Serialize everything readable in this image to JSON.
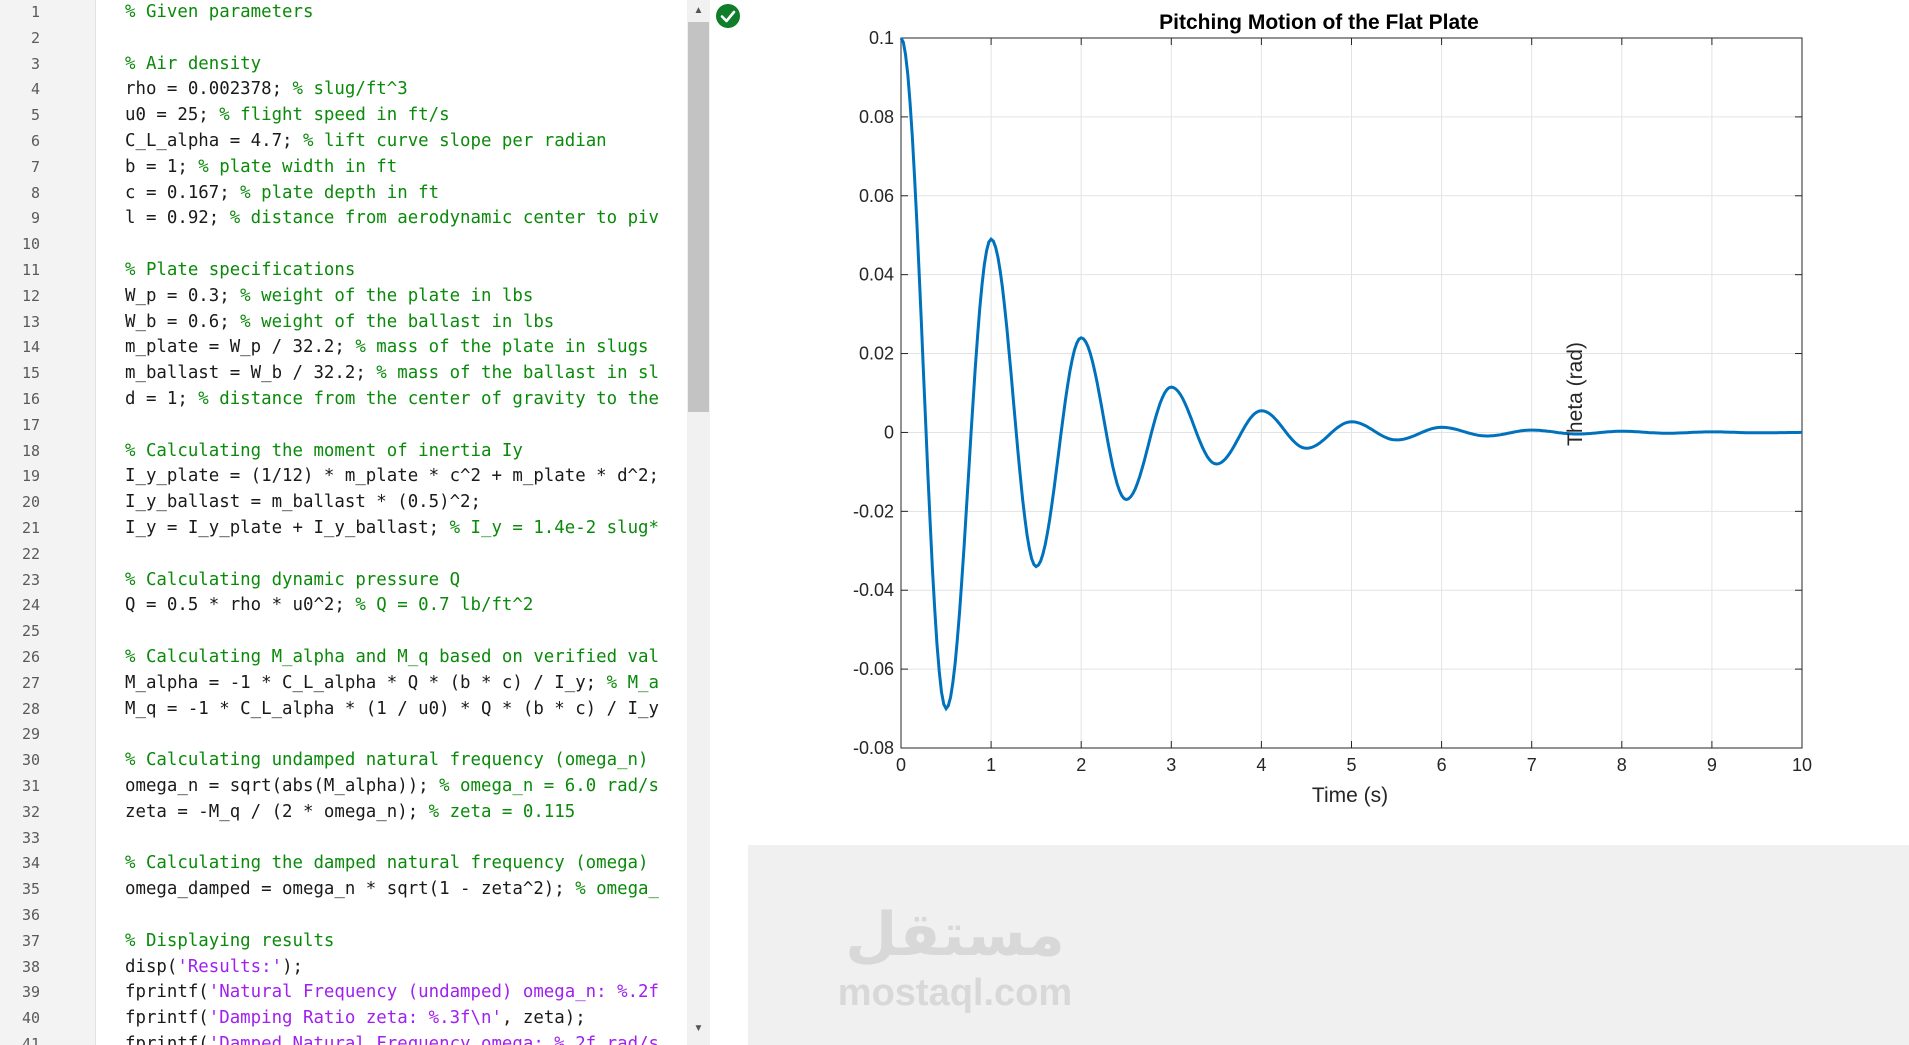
{
  "editor": {
    "lines": [
      {
        "n": "1",
        "segs": [
          {
            "t": "% Given parameters",
            "c": "cm"
          }
        ]
      },
      {
        "n": "2",
        "segs": []
      },
      {
        "n": "3",
        "segs": [
          {
            "t": "% Air density",
            "c": "cm"
          }
        ]
      },
      {
        "n": "4",
        "segs": [
          {
            "t": "rho = 0.002378; ",
            "c": ""
          },
          {
            "t": "% slug/ft^3",
            "c": "cm"
          }
        ]
      },
      {
        "n": "5",
        "segs": [
          {
            "t": "u0 = 25; ",
            "c": ""
          },
          {
            "t": "% flight speed in ft/s",
            "c": "cm"
          }
        ]
      },
      {
        "n": "6",
        "segs": [
          {
            "t": "C_L_alpha = 4.7; ",
            "c": ""
          },
          {
            "t": "% lift curve slope per radian",
            "c": "cm"
          }
        ]
      },
      {
        "n": "7",
        "segs": [
          {
            "t": "b = 1; ",
            "c": ""
          },
          {
            "t": "% plate width in ft",
            "c": "cm"
          }
        ]
      },
      {
        "n": "8",
        "segs": [
          {
            "t": "c = 0.167; ",
            "c": ""
          },
          {
            "t": "% plate depth in ft",
            "c": "cm"
          }
        ]
      },
      {
        "n": "9",
        "segs": [
          {
            "t": "l = 0.92; ",
            "c": ""
          },
          {
            "t": "% distance from aerodynamic center to piv",
            "c": "cm"
          }
        ]
      },
      {
        "n": "10",
        "segs": []
      },
      {
        "n": "11",
        "segs": [
          {
            "t": "% Plate specifications",
            "c": "cm"
          }
        ]
      },
      {
        "n": "12",
        "segs": [
          {
            "t": "W_p = 0.3; ",
            "c": ""
          },
          {
            "t": "% weight of the plate in lbs",
            "c": "cm"
          }
        ]
      },
      {
        "n": "13",
        "segs": [
          {
            "t": "W_b = 0.6; ",
            "c": ""
          },
          {
            "t": "% weight of the ballast in lbs",
            "c": "cm"
          }
        ]
      },
      {
        "n": "14",
        "segs": [
          {
            "t": "m_plate = W_p / 32.2; ",
            "c": ""
          },
          {
            "t": "% mass of the plate in slugs",
            "c": "cm"
          }
        ]
      },
      {
        "n": "15",
        "segs": [
          {
            "t": "m_ballast = W_b / 32.2; ",
            "c": ""
          },
          {
            "t": "% mass of the ballast in sl",
            "c": "cm"
          }
        ]
      },
      {
        "n": "16",
        "segs": [
          {
            "t": "d = 1; ",
            "c": ""
          },
          {
            "t": "% distance from the center of gravity to the",
            "c": "cm"
          }
        ]
      },
      {
        "n": "17",
        "segs": []
      },
      {
        "n": "18",
        "segs": [
          {
            "t": "% Calculating the moment of inertia Iy",
            "c": "cm"
          }
        ]
      },
      {
        "n": "19",
        "segs": [
          {
            "t": "I_y_plate = (1/12) * m_plate * c^2 + m_plate * d^2;",
            "c": ""
          }
        ]
      },
      {
        "n": "20",
        "segs": [
          {
            "t": "I_y_ballast = m_ballast * (0.5)^2;",
            "c": ""
          }
        ]
      },
      {
        "n": "21",
        "segs": [
          {
            "t": "I_y = I_y_plate + I_y_ballast; ",
            "c": ""
          },
          {
            "t": "% I_y = 1.4e-2 slug*",
            "c": "cm"
          }
        ]
      },
      {
        "n": "22",
        "segs": []
      },
      {
        "n": "23",
        "segs": [
          {
            "t": "% Calculating dynamic pressure Q",
            "c": "cm"
          }
        ]
      },
      {
        "n": "24",
        "segs": [
          {
            "t": "Q = 0.5 * rho * u0^2; ",
            "c": ""
          },
          {
            "t": "% Q = 0.7 lb/ft^2",
            "c": "cm"
          }
        ]
      },
      {
        "n": "25",
        "segs": []
      },
      {
        "n": "26",
        "segs": [
          {
            "t": "% Calculating M_alpha and M_q based on verified val",
            "c": "cm"
          }
        ]
      },
      {
        "n": "27",
        "segs": [
          {
            "t": "M_alpha = -1 * C_L_alpha * Q * (b * c) / I_y; ",
            "c": ""
          },
          {
            "t": "% M_a",
            "c": "cm"
          }
        ]
      },
      {
        "n": "28",
        "segs": [
          {
            "t": "M_q = -1 * C_L_alpha * (1 / u0) * Q * (b * c) / I_y",
            "c": ""
          }
        ]
      },
      {
        "n": "29",
        "segs": []
      },
      {
        "n": "30",
        "segs": [
          {
            "t": "% Calculating undamped natural frequency (omega_n)",
            "c": "cm"
          }
        ]
      },
      {
        "n": "31",
        "segs": [
          {
            "t": "omega_n = sqrt(abs(M_alpha)); ",
            "c": ""
          },
          {
            "t": "% omega_n = 6.0 rad/s",
            "c": "cm"
          }
        ]
      },
      {
        "n": "32",
        "segs": [
          {
            "t": "zeta = -M_q / (2 * omega_n); ",
            "c": ""
          },
          {
            "t": "% zeta = 0.115",
            "c": "cm"
          }
        ]
      },
      {
        "n": "33",
        "segs": []
      },
      {
        "n": "34",
        "segs": [
          {
            "t": "% Calculating the damped natural frequency (omega)",
            "c": "cm"
          }
        ]
      },
      {
        "n": "35",
        "segs": [
          {
            "t": "omega_damped = omega_n * sqrt(1 - zeta^2); ",
            "c": ""
          },
          {
            "t": "% omega_",
            "c": "cm"
          }
        ]
      },
      {
        "n": "36",
        "segs": []
      },
      {
        "n": "37",
        "segs": [
          {
            "t": "% Displaying results",
            "c": "cm"
          }
        ]
      },
      {
        "n": "38",
        "segs": [
          {
            "t": "disp(",
            "c": ""
          },
          {
            "t": "'Results:'",
            "c": "st"
          },
          {
            "t": ");",
            "c": ""
          }
        ]
      },
      {
        "n": "39",
        "segs": [
          {
            "t": "fprintf(",
            "c": ""
          },
          {
            "t": "'Natural Frequency (undamped) omega_n: %.2f",
            "c": "st"
          }
        ]
      },
      {
        "n": "40",
        "segs": [
          {
            "t": "fprintf(",
            "c": ""
          },
          {
            "t": "'Damping Ratio zeta: %.3f\\n'",
            "c": "st"
          },
          {
            "t": ", zeta);",
            "c": ""
          }
        ]
      },
      {
        "n": "41",
        "segs": [
          {
            "t": "fprintf(",
            "c": ""
          },
          {
            "t": "'Damped Natural Frequency omega: %.2f rad/s",
            "c": "st"
          }
        ]
      }
    ],
    "status_icon": "check-circle-icon",
    "scroll_up_icon": "triangle-up-icon",
    "scroll_down_icon": "triangle-down-icon"
  },
  "colors": {
    "comment": "#0a8a0a",
    "string": "#a020f0",
    "line_color": "#0072bd",
    "grid": "#e3e3e3"
  },
  "chart_data": {
    "type": "line",
    "title": "Pitching Motion of the Flat Plate",
    "xlabel": "Time (s)",
    "ylabel": "Theta (rad)",
    "xlim": [
      0,
      10
    ],
    "ylim": [
      -0.08,
      0.1
    ],
    "xticks": [
      0,
      1,
      2,
      3,
      4,
      5,
      6,
      7,
      8,
      9,
      10
    ],
    "yticks": [
      -0.08,
      -0.06,
      -0.04,
      -0.02,
      0,
      0.02,
      0.04,
      0.06,
      0.08,
      0.1
    ],
    "ytick_labels": [
      "-0.08",
      "-0.06",
      "-0.04",
      "-0.02",
      "0",
      "0.02",
      "0.04",
      "0.06",
      "0.08",
      "0.1"
    ],
    "grid": true,
    "series": [
      {
        "x": [
          0,
          0.5,
          1.0,
          1.5,
          2.0,
          2.5,
          3.0,
          3.5,
          4.0,
          4.5,
          5.0,
          5.5,
          6.0,
          6.5,
          7.0,
          7.5,
          8.0,
          8.5,
          9.0,
          9.5,
          10.0
        ],
        "y": [
          0.1,
          -0.07,
          0.049,
          -0.034,
          0.024,
          -0.017,
          0.0115,
          -0.008,
          0.0055,
          -0.004,
          0.0027,
          -0.0019,
          0.0013,
          -0.0009,
          0.0006,
          -0.0004,
          0.0003,
          -0.0002,
          0.00015,
          -0.0001,
          0
        ]
      }
    ]
  },
  "watermark": {
    "arabic": "مستقل",
    "latin": "mostaql.com"
  }
}
